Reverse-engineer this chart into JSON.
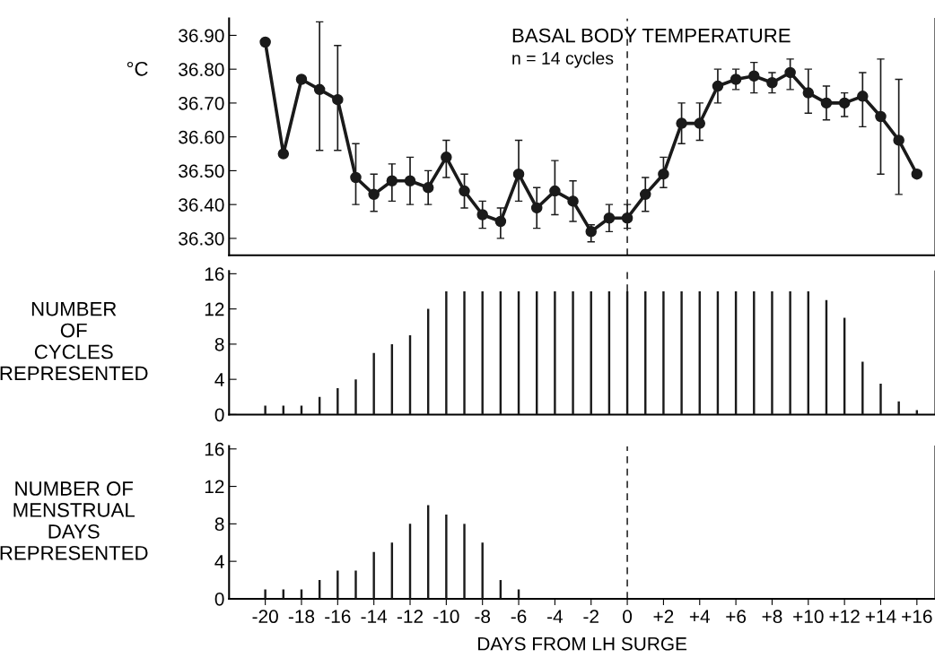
{
  "chart_data": [
    {
      "type": "line",
      "title": "BASAL BODY TEMPERATURE",
      "ylabel": "°C",
      "annotations": [
        "n = 14 cycles"
      ],
      "x": [
        -20,
        -19,
        -18,
        -17,
        -16,
        -15,
        -14,
        -13,
        -12,
        -11,
        -10,
        -9,
        -8,
        -7,
        -6,
        -5,
        -4,
        -3,
        -2,
        -1,
        0,
        1,
        2,
        3,
        4,
        5,
        6,
        7,
        8,
        9,
        10,
        11,
        12,
        13,
        14,
        15,
        16
      ],
      "series": [
        {
          "color": "#1a1a1a",
          "values": [
            36.88,
            36.55,
            36.77,
            36.74,
            36.71,
            36.48,
            36.43,
            36.47,
            36.47,
            36.45,
            36.54,
            36.44,
            36.37,
            36.35,
            36.49,
            36.39,
            36.44,
            36.41,
            36.32,
            36.36,
            36.36,
            36.43,
            36.49,
            36.64,
            36.64,
            36.75,
            36.77,
            36.78,
            36.76,
            36.79,
            36.73,
            36.7,
            36.7,
            36.72,
            36.66,
            36.59,
            36.49
          ],
          "errors": [
            null,
            null,
            null,
            [
              36.56,
              36.94
            ],
            [
              36.56,
              36.87
            ],
            [
              36.4,
              36.58
            ],
            [
              36.38,
              36.49
            ],
            [
              36.41,
              36.52
            ],
            [
              36.4,
              36.54
            ],
            [
              36.4,
              36.5
            ],
            [
              36.48,
              36.59
            ],
            [
              36.39,
              36.49
            ],
            [
              36.33,
              36.41
            ],
            [
              36.3,
              36.39
            ],
            [
              36.41,
              36.59
            ],
            [
              36.33,
              36.45
            ],
            [
              36.37,
              36.53
            ],
            [
              36.35,
              36.47
            ],
            [
              36.29,
              36.34
            ],
            [
              36.32,
              36.4
            ],
            [
              36.33,
              36.4
            ],
            [
              36.38,
              36.48
            ],
            [
              36.45,
              36.54
            ],
            [
              36.58,
              36.7
            ],
            [
              36.59,
              36.7
            ],
            [
              36.7,
              36.8
            ],
            [
              36.74,
              36.8
            ],
            [
              36.73,
              36.82
            ],
            [
              36.73,
              36.79
            ],
            [
              36.74,
              36.83
            ],
            [
              36.67,
              36.8
            ],
            [
              36.65,
              36.75
            ],
            [
              36.66,
              36.73
            ],
            [
              36.63,
              36.79
            ],
            [
              36.49,
              36.83
            ],
            [
              36.43,
              36.77
            ],
            null
          ]
        }
      ],
      "xlim": [
        -22,
        17
      ],
      "ylim": [
        36.25,
        36.95
      ],
      "yticks": [
        {
          "value": 36.3,
          "label": "36.30"
        },
        {
          "value": 36.4,
          "label": "36.40"
        },
        {
          "value": 36.5,
          "label": "36.50"
        },
        {
          "value": 36.6,
          "label": "36.60"
        },
        {
          "value": 36.7,
          "label": "36.70"
        },
        {
          "value": 36.8,
          "label": "36.80"
        },
        {
          "value": 36.9,
          "label": "36.90"
        }
      ],
      "marker": "circle",
      "line_style": "solid",
      "grid": false,
      "legend": false,
      "tick_labels": "y",
      "ref_lines": [
        {
          "axis": "x",
          "value": 0,
          "line_style": "dashed"
        }
      ]
    },
    {
      "type": "bar",
      "ylabel": "NUMBER\nOF\nCYCLES\nREPRESENTED",
      "x": [
        -20,
        -19,
        -18,
        -17,
        -16,
        -15,
        -14,
        -13,
        -12,
        -11,
        -10,
        -9,
        -8,
        -7,
        -6,
        -5,
        -4,
        -3,
        -2,
        -1,
        0,
        1,
        2,
        3,
        4,
        5,
        6,
        7,
        8,
        9,
        10,
        11,
        12,
        13,
        14,
        15,
        16
      ],
      "series": [
        {
          "color": "#1a1a1a",
          "values": [
            1,
            1,
            1,
            2,
            3,
            4,
            7,
            8,
            9,
            12,
            14,
            14,
            14,
            14,
            14,
            14,
            14,
            14,
            14,
            14,
            14,
            14,
            14,
            14,
            14,
            14,
            14,
            14,
            14,
            14,
            14,
            13,
            11,
            6,
            3.5,
            1.5,
            0.5
          ]
        }
      ],
      "xlim": [
        -22,
        17
      ],
      "ylim": [
        0,
        16.3
      ],
      "yticks": [
        0,
        4,
        8,
        12,
        16
      ],
      "grid": false,
      "legend": false,
      "tick_labels": "y",
      "ref_lines": [
        {
          "axis": "x",
          "value": 0,
          "line_style": "dashed"
        }
      ]
    },
    {
      "type": "bar",
      "ylabel": "NUMBER OF\nMENSTRUAL\nDAYS\nREPRESENTED",
      "xlabel": "DAYS FROM LH SURGE",
      "x": [
        -20,
        -19,
        -18,
        -17,
        -16,
        -15,
        -14,
        -13,
        -12,
        -11,
        -10,
        -9,
        -8,
        -7,
        -6
      ],
      "series": [
        {
          "color": "#1a1a1a",
          "values": [
            1,
            1,
            1,
            2,
            3,
            3,
            5,
            6,
            8,
            10,
            9,
            8,
            6,
            2,
            1
          ]
        }
      ],
      "xlim": [
        -22,
        17
      ],
      "ylim": [
        0,
        16.3
      ],
      "yticks": [
        0,
        4,
        8,
        12,
        16
      ],
      "xticks": [
        -20,
        -18,
        -16,
        -14,
        -12,
        -10,
        -8,
        -6,
        -4,
        -2,
        0,
        {
          "value": 2,
          "label": "+2"
        },
        {
          "value": 4,
          "label": "+4"
        },
        {
          "value": 6,
          "label": "+6"
        },
        {
          "value": 8,
          "label": "+8"
        },
        {
          "value": 10,
          "label": "+10"
        },
        {
          "value": 12,
          "label": "+12"
        },
        {
          "value": 14,
          "label": "+14"
        },
        {
          "value": 16,
          "label": "+16"
        }
      ],
      "grid": false,
      "legend": false,
      "ref_lines": [
        {
          "axis": "x",
          "value": 0,
          "line_style": "dashed"
        }
      ]
    }
  ]
}
